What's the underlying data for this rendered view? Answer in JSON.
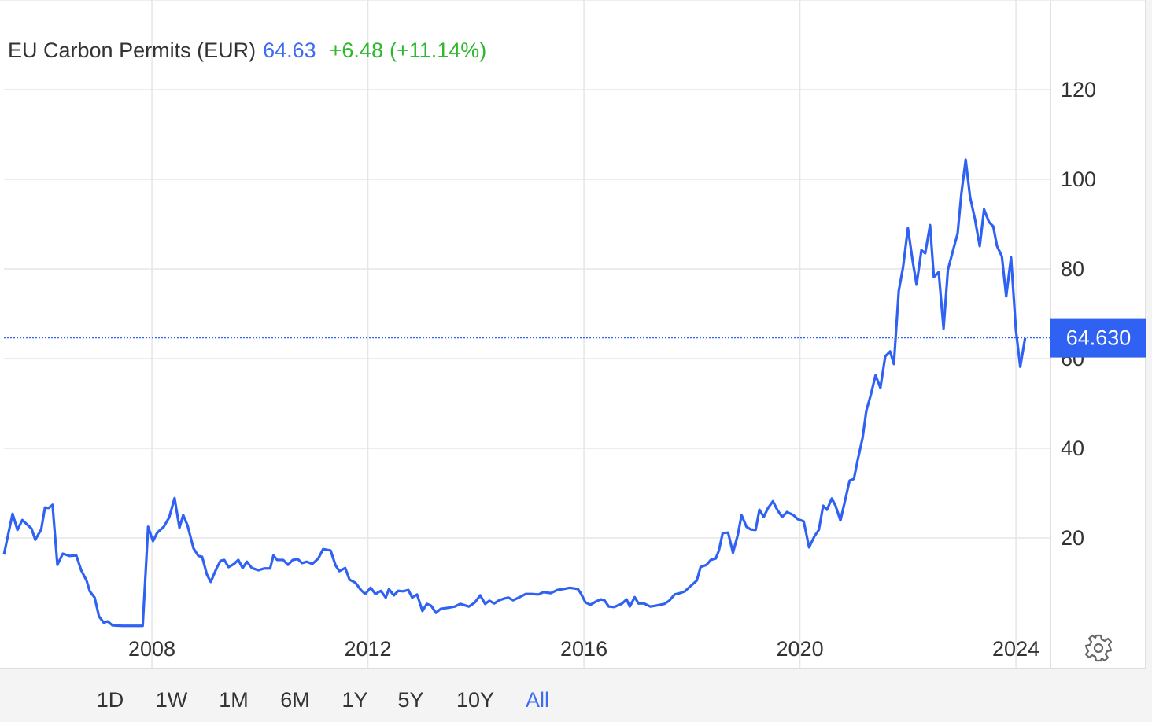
{
  "chart_data": {
    "type": "line",
    "title": "EU Carbon Permits (EUR)",
    "price": "64.63",
    "change": "+6.48",
    "change_pct": "(+11.14%)",
    "color": "#2f62f2",
    "grid": true,
    "last_price": {
      "value": 64.63,
      "label": "64.630"
    },
    "ylim": [
      0,
      140
    ],
    "yticks": [
      20,
      40,
      60,
      80,
      100,
      120
    ],
    "xlim": [
      2005.26,
      2024.64
    ],
    "xticks": [
      2008,
      2012,
      2016,
      2020,
      2024
    ],
    "ranges": [
      "1D",
      "1W",
      "1M",
      "6M",
      "1Y",
      "5Y",
      "10Y",
      "All"
    ],
    "active_range": 7,
    "x": [
      2005.26,
      2005.42,
      2005.51,
      2005.6,
      2005.77,
      2005.84,
      2005.95,
      2006.02,
      2006.09,
      2006.16,
      2006.25,
      2006.35,
      2006.47,
      2006.6,
      2006.69,
      2006.79,
      2006.85,
      2006.94,
      2007.02,
      2007.11,
      2007.18,
      2007.27,
      2007.45,
      2007.83,
      2007.93,
      2008.02,
      2008.1,
      2008.22,
      2008.32,
      2008.42,
      2008.51,
      2008.58,
      2008.66,
      2008.77,
      2008.86,
      2008.93,
      2009.02,
      2009.09,
      2009.2,
      2009.27,
      2009.34,
      2009.42,
      2009.52,
      2009.6,
      2009.68,
      2009.76,
      2009.85,
      2009.97,
      2010.08,
      2010.19,
      2010.25,
      2010.32,
      2010.43,
      2010.52,
      2010.61,
      2010.7,
      2010.78,
      2010.87,
      2010.97,
      2011.08,
      2011.17,
      2011.31,
      2011.4,
      2011.47,
      2011.58,
      2011.66,
      2011.77,
      2011.87,
      2011.95,
      2012.05,
      2012.14,
      2012.24,
      2012.33,
      2012.39,
      2012.48,
      2012.56,
      2012.65,
      2012.75,
      2012.82,
      2012.91,
      2013.01,
      2013.09,
      2013.17,
      2013.26,
      2013.35,
      2013.47,
      2013.61,
      2013.71,
      2013.87,
      2013.98,
      2014.08,
      2014.17,
      2014.25,
      2014.34,
      2014.43,
      2014.53,
      2014.6,
      2014.69,
      2014.81,
      2014.92,
      2015.03,
      2015.16,
      2015.25,
      2015.39,
      2015.51,
      2015.62,
      2015.74,
      2015.89,
      2015.94,
      2016.03,
      2016.12,
      2016.22,
      2016.31,
      2016.38,
      2016.46,
      2016.56,
      2016.7,
      2016.79,
      2016.85,
      2016.94,
      2017.01,
      2017.11,
      2017.23,
      2017.33,
      2017.49,
      2017.58,
      2017.68,
      2017.78,
      2017.87,
      2017.96,
      2018.09,
      2018.16,
      2018.27,
      2018.35,
      2018.44,
      2018.5,
      2018.57,
      2018.67,
      2018.76,
      2018.85,
      2018.92,
      2019.01,
      2019.09,
      2019.18,
      2019.25,
      2019.33,
      2019.41,
      2019.5,
      2019.58,
      2019.67,
      2019.76,
      2019.88,
      2019.96,
      2020.07,
      2020.17,
      2020.27,
      2020.35,
      2020.43,
      2020.5,
      2020.59,
      2020.66,
      2020.75,
      2020.85,
      2020.92,
      2021.0,
      2021.07,
      2021.16,
      2021.23,
      2021.31,
      2021.4,
      2021.49,
      2021.58,
      2021.67,
      2021.74,
      2021.83,
      2021.91,
      2022.0,
      2022.09,
      2022.16,
      2022.25,
      2022.32,
      2022.41,
      2022.48,
      2022.57,
      2022.66,
      2022.74,
      2022.83,
      2022.92,
      2022.99,
      2023.07,
      2023.15,
      2023.24,
      2023.33,
      2023.41,
      2023.5,
      2023.58,
      2023.65,
      2023.74,
      2023.82,
      2023.91,
      2024.0,
      2024.08,
      2024.17
    ],
    "values": [
      16.3,
      25.4,
      21.8,
      24.0,
      22.1,
      19.6,
      21.9,
      26.8,
      26.7,
      27.4,
      14.0,
      16.5,
      16.0,
      16.1,
      12.8,
      10.5,
      8.1,
      6.7,
      2.5,
      1.1,
      1.4,
      0.5,
      0.4,
      0.4,
      22.5,
      19.3,
      21.2,
      22.5,
      24.6,
      28.9,
      22.3,
      25.1,
      22.8,
      17.7,
      16.0,
      15.8,
      11.8,
      10.2,
      13.3,
      14.9,
      15.1,
      13.5,
      14.2,
      15.1,
      13.3,
      14.7,
      13.3,
      12.8,
      13.2,
      13.2,
      16.1,
      15.1,
      15.1,
      14.0,
      15.1,
      15.3,
      14.4,
      14.7,
      14.2,
      15.4,
      17.5,
      17.2,
      13.9,
      12.6,
      13.3,
      10.7,
      10.0,
      8.4,
      7.5,
      8.9,
      7.5,
      8.2,
      6.7,
      8.6,
      7.2,
      8.2,
      8.1,
      8.4,
      6.7,
      7.4,
      3.7,
      5.3,
      4.9,
      3.3,
      4.2,
      4.4,
      4.7,
      5.3,
      4.7,
      5.6,
      7.2,
      5.3,
      6.0,
      5.4,
      6.1,
      6.5,
      6.7,
      6.1,
      6.8,
      7.5,
      7.5,
      7.4,
      7.9,
      7.7,
      8.4,
      8.6,
      8.9,
      8.6,
      7.7,
      5.6,
      5.1,
      5.8,
      6.3,
      6.1,
      4.7,
      4.6,
      5.3,
      6.3,
      4.7,
      6.8,
      5.4,
      5.4,
      4.7,
      4.9,
      5.3,
      6.0,
      7.4,
      7.7,
      8.1,
      9.1,
      10.5,
      13.5,
      14.0,
      15.1,
      15.4,
      17.2,
      21.1,
      21.2,
      16.7,
      20.7,
      25.1,
      22.5,
      21.9,
      21.8,
      26.3,
      24.7,
      26.7,
      28.2,
      26.3,
      24.7,
      25.8,
      25.1,
      24.2,
      23.7,
      17.9,
      20.4,
      21.8,
      27.2,
      26.3,
      28.8,
      27.2,
      23.9,
      29.1,
      32.8,
      33.2,
      37.4,
      42.3,
      48.4,
      51.8,
      56.3,
      53.5,
      60.5,
      61.6,
      58.8,
      75.1,
      80.4,
      89.1,
      81.6,
      76.5,
      84.2,
      83.5,
      89.8,
      78.2,
      79.3,
      66.7,
      79.8,
      83.9,
      87.9,
      96.8,
      104.4,
      96.1,
      91.2,
      85.1,
      93.3,
      90.5,
      89.5,
      85.1,
      82.8,
      73.9,
      82.6,
      66.3,
      58.2,
      64.63
    ]
  }
}
